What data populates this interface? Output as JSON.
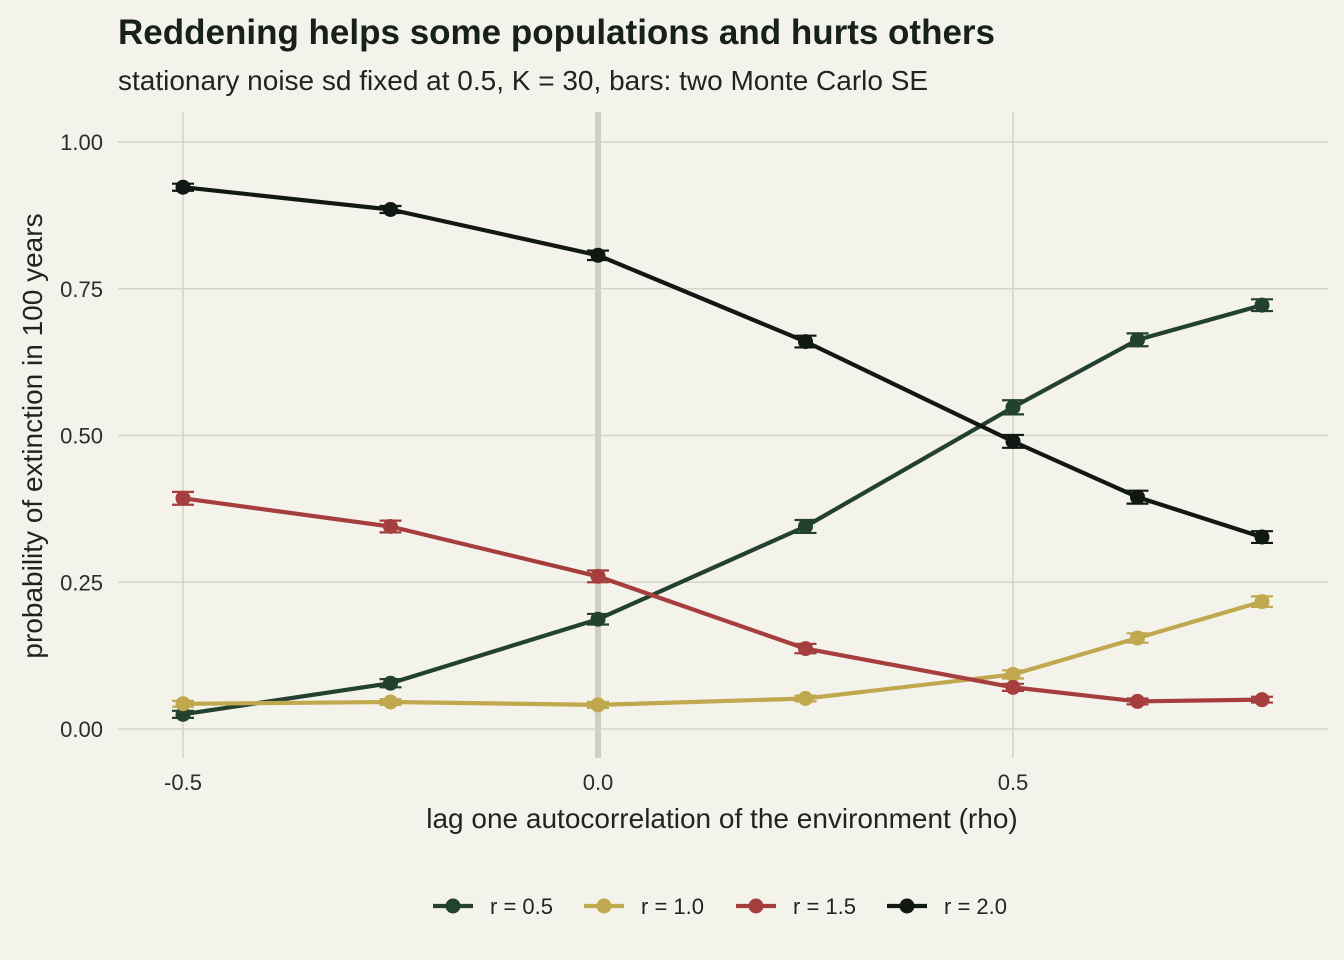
{
  "chart_data": {
    "type": "line",
    "title": "Reddening helps some populations and hurts others",
    "subtitle": "stationary noise sd fixed at 0.5, K = 30, bars: two Monte Carlo SE",
    "xlabel": "lag one autocorrelation of the environment (rho)",
    "ylabel": "probability of extinction in 100 years",
    "xlim": [
      -0.6,
      0.9
    ],
    "ylim": [
      0,
      1.05
    ],
    "x_ticks": [
      -0.5,
      0.0,
      0.5
    ],
    "x_tick_labels": [
      "-0.5",
      "0.0",
      "0.5"
    ],
    "y_ticks": [
      0,
      0.25,
      0.5,
      0.75,
      1.0
    ],
    "y_tick_labels": [
      "0.00",
      "0.25",
      "0.50",
      "0.75",
      "1.00"
    ],
    "reference_line_x": 0,
    "grid": true,
    "legend_position": "bottom",
    "x": [
      -0.5,
      -0.25,
      0.0,
      0.25,
      0.5,
      0.65,
      0.8
    ],
    "series": [
      {
        "name": "r = 0.5",
        "color": "#22412f",
        "values": [
          0.025,
          0.078,
          0.187,
          0.345,
          0.548,
          0.663,
          0.722
        ],
        "se2": [
          0.006,
          0.007,
          0.009,
          0.011,
          0.012,
          0.011,
          0.01
        ]
      },
      {
        "name": "r = 1.0",
        "color": "#c0a84e",
        "values": [
          0.043,
          0.046,
          0.041,
          0.052,
          0.093,
          0.155,
          0.217
        ],
        "se2": [
          0.005,
          0.005,
          0.005,
          0.005,
          0.007,
          0.008,
          0.009
        ]
      },
      {
        "name": "r = 1.5",
        "color": "#a63e3e",
        "values": [
          0.393,
          0.345,
          0.26,
          0.137,
          0.071,
          0.047,
          0.05
        ],
        "se2": [
          0.011,
          0.01,
          0.01,
          0.008,
          0.006,
          0.005,
          0.005
        ]
      },
      {
        "name": "r = 2.0",
        "color": "#111814",
        "values": [
          0.923,
          0.885,
          0.807,
          0.66,
          0.49,
          0.395,
          0.327
        ],
        "se2": [
          0.006,
          0.006,
          0.008,
          0.01,
          0.011,
          0.011,
          0.01
        ]
      }
    ]
  }
}
